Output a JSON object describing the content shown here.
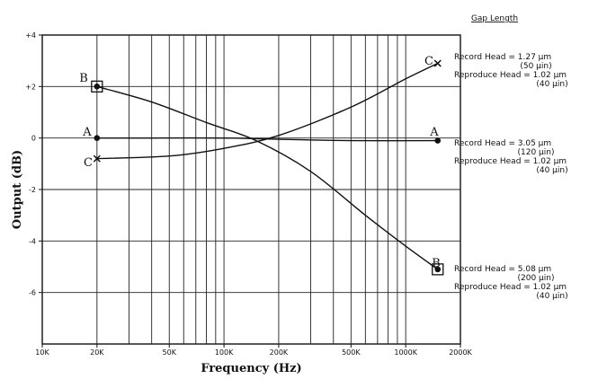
{
  "chart_data": {
    "type": "line",
    "xscale": "log",
    "xlim": [
      10000,
      2000000
    ],
    "ylim": [
      -8,
      4
    ],
    "grid": true,
    "xlabel": "Frequency (Hz)",
    "ylabel": "Output (dB)",
    "xticks": [
      {
        "v": 10000,
        "label": "10K"
      },
      {
        "v": 20000,
        "label": "20K"
      },
      {
        "v": 50000,
        "label": "50K"
      },
      {
        "v": 100000,
        "label": "100K"
      },
      {
        "v": 200000,
        "label": "200K"
      },
      {
        "v": 500000,
        "label": "500K"
      },
      {
        "v": 1000000,
        "label": "1000K"
      },
      {
        "v": 2000000,
        "label": "2000K"
      }
    ],
    "yticks": [
      {
        "v": 4,
        "label": "+4"
      },
      {
        "v": 2,
        "label": "+2"
      },
      {
        "v": 0,
        "label": "0"
      },
      {
        "v": -2,
        "label": "-2"
      },
      {
        "v": -4,
        "label": "-4"
      },
      {
        "v": -6,
        "label": "-6"
      }
    ],
    "legend_title": "Gap Length",
    "series": [
      {
        "name": "A",
        "marker": "dot",
        "x": [
          20000,
          40000,
          100000,
          200000,
          500000,
          1500000
        ],
        "y": [
          0,
          0,
          0,
          -0.05,
          -0.1,
          -0.1
        ],
        "end_markers": true,
        "notes": [
          "Record Head = 3.05 µm",
          "(120 µin)",
          "Reproduce Head = 1.02 µm",
          "(40 µin)"
        ]
      },
      {
        "name": "B",
        "marker": "boxed-dot",
        "x": [
          20000,
          40000,
          80000,
          150000,
          300000,
          600000,
          1000000,
          1500000
        ],
        "y": [
          2,
          1.4,
          0.6,
          -0.1,
          -1.3,
          -3.0,
          -4.2,
          -5.1
        ],
        "end_markers": true,
        "notes": [
          "Record Head = 5.08 µm",
          "(200 µin)",
          "Reproduce Head = 1.02 µm",
          "(40 µin)"
        ]
      },
      {
        "name": "C",
        "marker": "cross",
        "x": [
          20000,
          50000,
          100000,
          200000,
          500000,
          1000000,
          1500000
        ],
        "y": [
          -0.8,
          -0.7,
          -0.4,
          0.1,
          1.2,
          2.3,
          2.9
        ],
        "end_markers": true,
        "notes": [
          "Record Head = 1.27 µm",
          "(50 µin)",
          "Reproduce Head = 1.02 µm",
          "(40 µin)"
        ]
      }
    ]
  }
}
